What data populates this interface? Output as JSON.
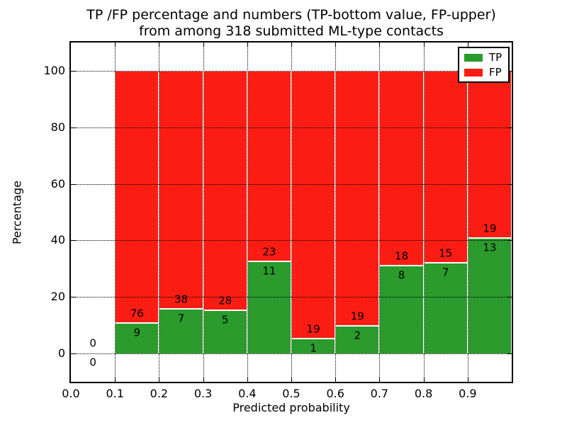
{
  "chart_data": {
    "type": "bar",
    "stacked": true,
    "title_line1": "TP /FP percentage and numbers (TP-bottom value, FP-upper)",
    "title_line2": "from among 318 submitted ML-type contacts",
    "total_submitted": 318,
    "xlabel": "Predicted probability",
    "ylabel": "Percentage",
    "xlim": [
      0.0,
      1.0
    ],
    "ylim": [
      -10,
      110
    ],
    "x_tick_values": [
      0.0,
      0.1,
      0.2,
      0.3,
      0.4,
      0.5,
      0.6,
      0.7,
      0.8,
      0.9
    ],
    "x_tick_labels": [
      "0.0",
      "0.1",
      "0.2",
      "0.3",
      "0.4",
      "0.5",
      "0.6",
      "0.7",
      "0.8",
      "0.9"
    ],
    "y_tick_values": [
      0,
      20,
      40,
      60,
      80,
      100
    ],
    "y_tick_labels": [
      "0",
      "20",
      "40",
      "60",
      "80",
      "100"
    ],
    "grid": true,
    "colors": {
      "tp": "#2a9b2c",
      "fp": "#fb1d14",
      "bar_edge": "#ffffff"
    },
    "legend": {
      "position": "upper right",
      "entries": [
        {
          "label": "TP",
          "color": "#2a9b2c"
        },
        {
          "label": "FP",
          "color": "#fb1d14"
        }
      ]
    },
    "bins": [
      {
        "range": [
          0.0,
          0.1
        ],
        "tp_count": 0,
        "fp_count": 0,
        "tp_pct": 0.0,
        "fp_pct": 0.0
      },
      {
        "range": [
          0.1,
          0.2
        ],
        "tp_count": 9,
        "fp_count": 76,
        "tp_pct": 10.59,
        "fp_pct": 89.41
      },
      {
        "range": [
          0.2,
          0.3
        ],
        "tp_count": 7,
        "fp_count": 38,
        "tp_pct": 15.56,
        "fp_pct": 84.44
      },
      {
        "range": [
          0.3,
          0.4
        ],
        "tp_count": 5,
        "fp_count": 28,
        "tp_pct": 15.15,
        "fp_pct": 84.85
      },
      {
        "range": [
          0.4,
          0.5
        ],
        "tp_count": 11,
        "fp_count": 23,
        "tp_pct": 32.35,
        "fp_pct": 67.65
      },
      {
        "range": [
          0.5,
          0.6
        ],
        "tp_count": 1,
        "fp_count": 19,
        "tp_pct": 5.0,
        "fp_pct": 95.0
      },
      {
        "range": [
          0.6,
          0.7
        ],
        "tp_count": 2,
        "fp_count": 19,
        "tp_pct": 9.52,
        "fp_pct": 90.48
      },
      {
        "range": [
          0.7,
          0.8
        ],
        "tp_count": 8,
        "fp_count": 18,
        "tp_pct": 30.77,
        "fp_pct": 69.23
      },
      {
        "range": [
          0.8,
          0.9
        ],
        "tp_count": 7,
        "fp_count": 15,
        "tp_pct": 31.82,
        "fp_pct": 68.18
      },
      {
        "range": [
          0.9,
          1.0
        ],
        "tp_count": 13,
        "fp_count": 19,
        "tp_pct": 40.63,
        "fp_pct": 59.37
      }
    ]
  }
}
